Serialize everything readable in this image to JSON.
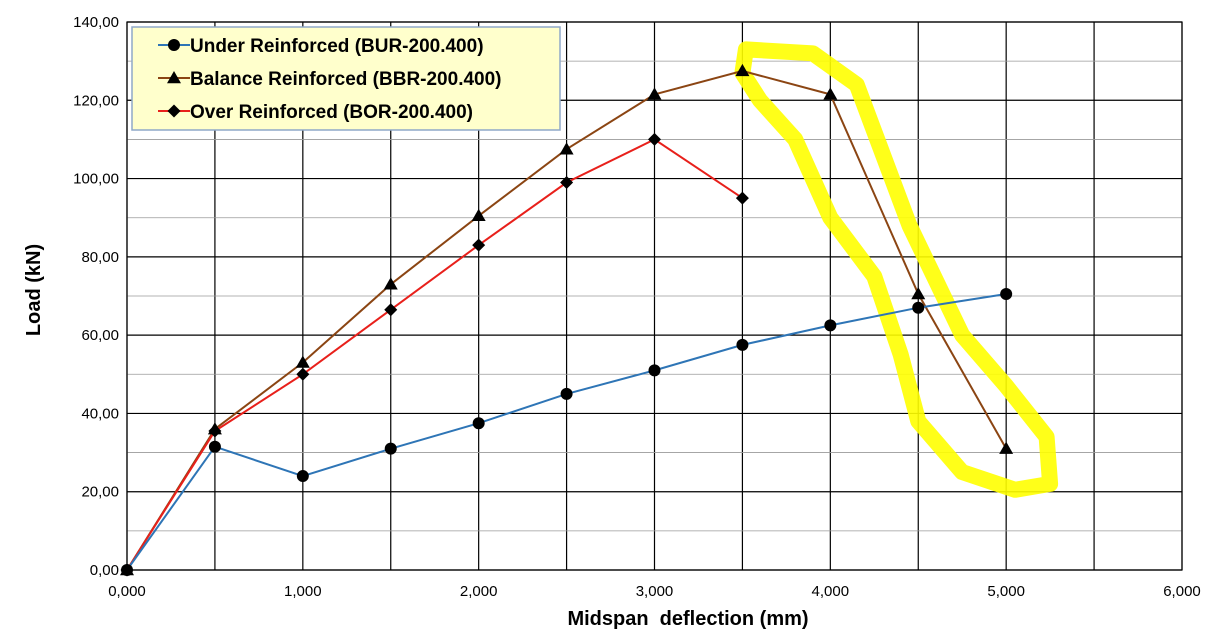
{
  "chart_data": {
    "type": "line",
    "title": "",
    "xlabel": "Midspan  deflection (mm)",
    "ylabel": "Load (kN)",
    "xlim": [
      0,
      6
    ],
    "ylim": [
      0,
      140
    ],
    "x_ticks": [
      0,
      0.5,
      1,
      1.5,
      2,
      2.5,
      3,
      3.5,
      4,
      4.5,
      5,
      5.5,
      6
    ],
    "x_tick_labels": [
      "0,000",
      "",
      "1,000",
      "",
      "2,000",
      "",
      "3,000",
      "",
      "4,000",
      "",
      "5,000",
      "",
      "6,000"
    ],
    "y_ticks": [
      0,
      20,
      40,
      60,
      80,
      100,
      120,
      140
    ],
    "y_tick_labels": [
      "0,00",
      "20,00",
      "40,00",
      "60,00",
      "80,00",
      "100,00",
      "120,00",
      "140,00"
    ],
    "grid": true,
    "legend_position": "top-left",
    "series": [
      {
        "name": "Under Reinforced (BUR-200.400)",
        "color": "#2e75b6",
        "marker": "circle",
        "x": [
          0,
          0.5,
          1,
          1.5,
          2,
          2.5,
          3,
          3.5,
          4,
          4.5,
          5
        ],
        "values": [
          0,
          31.5,
          24,
          31,
          37.5,
          45,
          51,
          57.5,
          62.5,
          67,
          70.5
        ]
      },
      {
        "name": "Balance Reinforced (BBR-200.400)",
        "color": "#8b4513",
        "marker": "triangle",
        "x": [
          0,
          0.5,
          1,
          1.5,
          2,
          2.5,
          3,
          3.5,
          4,
          4.5,
          5
        ],
        "values": [
          0,
          36,
          53,
          73,
          90.5,
          107.5,
          121.5,
          127.5,
          121.5,
          70.5,
          31
        ]
      },
      {
        "name": "Over Reinforced (BOR-200.400)",
        "color": "#e8201b",
        "marker": "diamond",
        "x": [
          0,
          0.5,
          1,
          1.5,
          2,
          2.5,
          3,
          3.5
        ],
        "values": [
          0,
          35.5,
          50,
          66.5,
          83,
          99,
          110,
          95
        ]
      }
    ],
    "annotations": [
      {
        "type": "highlight-loop",
        "color": "#ffff00",
        "note": ""
      }
    ]
  }
}
